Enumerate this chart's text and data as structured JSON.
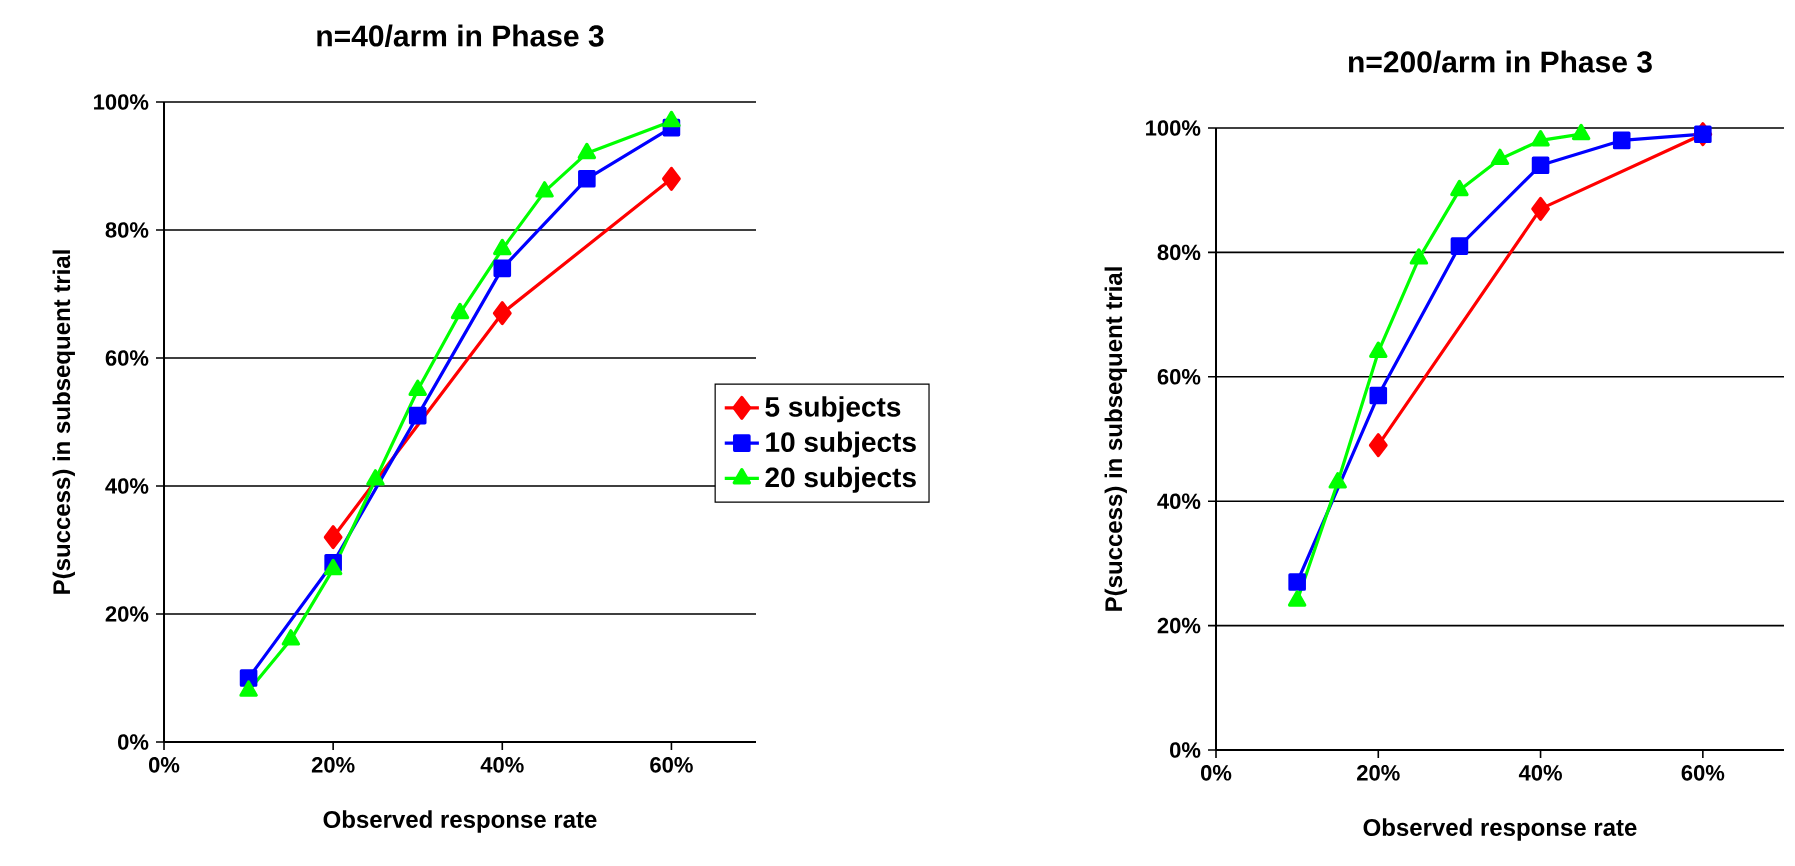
{
  "chart_data": [
    {
      "type": "line",
      "title": "n=40/arm in Phase 3",
      "xlabel": "Observed response rate",
      "ylabel": "P(success) in subsequent trial",
      "xlim": [
        0,
        70
      ],
      "ylim": [
        0,
        100
      ],
      "xticks": [
        {
          "value": 0,
          "label": "0%"
        },
        {
          "value": 20,
          "label": "20%"
        },
        {
          "value": 40,
          "label": "40%"
        },
        {
          "value": 60,
          "label": "60%"
        }
      ],
      "yticks": [
        {
          "value": 0,
          "label": "0%"
        },
        {
          "value": 20,
          "label": "20%"
        },
        {
          "value": 40,
          "label": "40%"
        },
        {
          "value": 60,
          "label": "60%"
        },
        {
          "value": 80,
          "label": "80%"
        },
        {
          "value": 100,
          "label": "100%"
        }
      ],
      "grid": "y",
      "legend": "right",
      "series": [
        {
          "name": "5 subjects",
          "color": "#ff0000",
          "marker": "diamond",
          "x": [
            20,
            40,
            60
          ],
          "values": [
            32,
            67,
            88
          ]
        },
        {
          "name": "10 subjects",
          "color": "#0000ff",
          "marker": "square",
          "x": [
            10,
            20,
            30,
            40,
            50,
            60
          ],
          "values": [
            10,
            28,
            51,
            74,
            88,
            96
          ]
        },
        {
          "name": "20 subjects",
          "color": "#00ff00",
          "marker": "triangle",
          "x": [
            10,
            15,
            20,
            25,
            30,
            35,
            40,
            45,
            50,
            60
          ],
          "values": [
            8,
            16,
            27,
            41,
            55,
            67,
            77,
            86,
            92,
            97
          ]
        }
      ]
    },
    {
      "type": "line",
      "title": "n=200/arm in Phase 3",
      "xlabel": "Observed response rate",
      "ylabel": "P(success) in subsequent trial",
      "xlim": [
        0,
        70
      ],
      "ylim": [
        0,
        100
      ],
      "xticks": [
        {
          "value": 0,
          "label": "0%"
        },
        {
          "value": 20,
          "label": "20%"
        },
        {
          "value": 40,
          "label": "40%"
        },
        {
          "value": 60,
          "label": "60%"
        }
      ],
      "yticks": [
        {
          "value": 0,
          "label": "0%"
        },
        {
          "value": 20,
          "label": "20%"
        },
        {
          "value": 40,
          "label": "40%"
        },
        {
          "value": 60,
          "label": "60%"
        },
        {
          "value": 80,
          "label": "80%"
        },
        {
          "value": 100,
          "label": "100%"
        }
      ],
      "grid": "y",
      "series": [
        {
          "color": "#ff0000",
          "marker": "diamond",
          "x": [
            20,
            40,
            60
          ],
          "values": [
            49,
            87,
            99
          ]
        },
        {
          "color": "#0000ff",
          "marker": "square",
          "x": [
            10,
            20,
            30,
            40,
            50,
            60
          ],
          "values": [
            27,
            57,
            81,
            94,
            98,
            99
          ]
        },
        {
          "color": "#00ff00",
          "marker": "triangle",
          "x": [
            10,
            15,
            20,
            25,
            30,
            35,
            40,
            45
          ],
          "values": [
            24,
            43,
            64,
            79,
            90,
            95,
            98,
            99
          ]
        }
      ]
    }
  ]
}
